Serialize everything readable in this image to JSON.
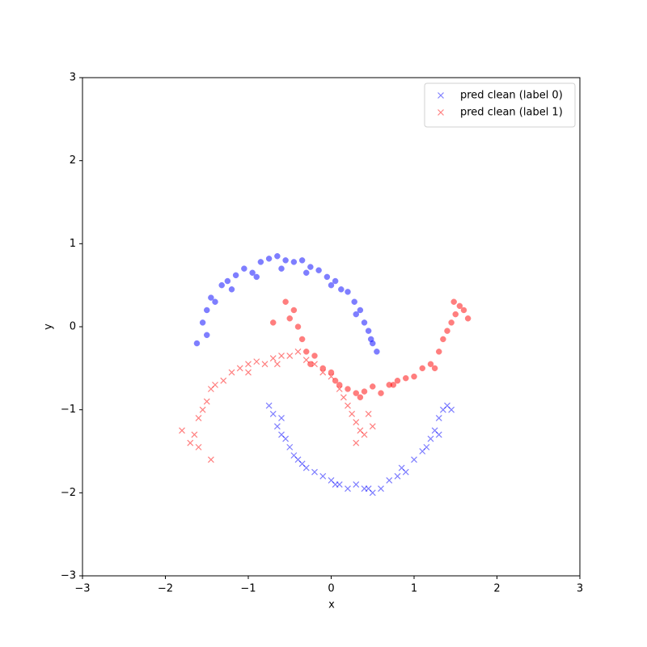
{
  "chart_data": {
    "type": "scatter",
    "xlabel": "x",
    "ylabel": "y",
    "xlim": [
      -3,
      3
    ],
    "ylim": [
      -3,
      3
    ],
    "xticks": [
      {
        "value": -3,
        "label": "−3"
      },
      {
        "value": -2,
        "label": "−2"
      },
      {
        "value": -1,
        "label": "−1"
      },
      0,
      1,
      2,
      3
    ],
    "yticks": [
      {
        "value": -3,
        "label": "−3"
      },
      {
        "value": -2,
        "label": "−2"
      },
      {
        "value": -1,
        "label": "−1"
      },
      0,
      1,
      2,
      3
    ],
    "grid": false,
    "legend": "upper right",
    "alpha": 0.5,
    "series": [
      {
        "name": "pred clean (label 0)",
        "color": "#0000ff",
        "marker": "x",
        "x": [
          -0.75,
          -0.7,
          -0.65,
          -0.6,
          -0.55,
          -0.5,
          -0.45,
          -0.4,
          -0.3,
          -0.2,
          -0.1,
          0,
          0.1,
          0.2,
          0.3,
          0.4,
          0.5,
          0.6,
          0.7,
          0.8,
          0.9,
          1.0,
          1.1,
          1.15,
          1.2,
          1.25,
          1.3,
          1.35,
          1.4,
          1.45,
          -0.6,
          -0.35,
          0.05,
          0.45,
          0.85,
          1.3
        ],
        "values": [
          -0.95,
          -1.05,
          -1.2,
          -1.3,
          -1.35,
          -1.45,
          -1.55,
          -1.6,
          -1.7,
          -1.75,
          -1.8,
          -1.85,
          -1.9,
          -1.95,
          -1.9,
          -1.95,
          -2.0,
          -1.95,
          -1.85,
          -1.8,
          -1.75,
          -1.6,
          -1.5,
          -1.45,
          -1.35,
          -1.25,
          -1.1,
          -1.0,
          -0.95,
          -1.0,
          -1.1,
          -1.65,
          -1.9,
          -1.95,
          -1.7,
          -1.3
        ]
      },
      {
        "name": "pred clean (label 1)",
        "color": "#ff0000",
        "marker": "x",
        "x": [
          -1.8,
          -1.7,
          -1.65,
          -1.6,
          -1.55,
          -1.5,
          -1.45,
          -1.4,
          -1.3,
          -1.2,
          -1.1,
          -1.0,
          -0.9,
          -0.8,
          -0.7,
          -0.6,
          -0.5,
          -0.4,
          -0.3,
          -0.2,
          -0.1,
          0.0,
          0.1,
          0.15,
          0.2,
          0.25,
          0.3,
          0.35,
          0.4,
          -1.45,
          -1.6,
          -1.0,
          -0.65,
          0.5,
          0.3,
          0.45
        ],
        "values": [
          -1.25,
          -1.4,
          -1.3,
          -1.1,
          -1.0,
          -0.9,
          -0.75,
          -0.7,
          -0.65,
          -0.55,
          -0.5,
          -0.45,
          -0.42,
          -0.45,
          -0.38,
          -0.35,
          -0.35,
          -0.3,
          -0.4,
          -0.45,
          -0.55,
          -0.6,
          -0.75,
          -0.85,
          -0.95,
          -1.05,
          -1.15,
          -1.25,
          -1.3,
          -1.6,
          -1.45,
          -0.55,
          -0.45,
          -1.2,
          -1.4,
          -1.05
        ]
      },
      {
        "color": "#0000ff",
        "marker": "o",
        "x": [
          -1.62,
          -1.55,
          -1.5,
          -1.45,
          -1.4,
          -1.32,
          -1.25,
          -1.15,
          -1.05,
          -0.95,
          -0.85,
          -0.75,
          -0.65,
          -0.55,
          -0.45,
          -0.35,
          -0.25,
          -0.15,
          -0.05,
          0.05,
          0.12,
          0.2,
          0.28,
          0.35,
          0.4,
          0.45,
          0.5,
          0.55,
          -1.5,
          -1.2,
          -0.9,
          -0.6,
          -0.3,
          0.0,
          0.3,
          0.48
        ],
        "values": [
          -0.2,
          0.05,
          0.2,
          0.35,
          0.3,
          0.5,
          0.55,
          0.62,
          0.7,
          0.65,
          0.78,
          0.82,
          0.85,
          0.8,
          0.78,
          0.8,
          0.72,
          0.68,
          0.6,
          0.55,
          0.45,
          0.42,
          0.3,
          0.2,
          0.05,
          -0.05,
          -0.2,
          -0.3,
          -0.1,
          0.45,
          0.6,
          0.7,
          0.65,
          0.5,
          0.15,
          -0.15
        ]
      },
      {
        "color": "#ff0000",
        "marker": "o",
        "x": [
          -0.7,
          -0.55,
          -0.45,
          -0.4,
          -0.35,
          -0.3,
          -0.2,
          -0.1,
          0,
          0.1,
          0.2,
          0.3,
          0.4,
          0.5,
          0.6,
          0.7,
          0.8,
          0.9,
          1.0,
          1.1,
          1.2,
          1.3,
          1.35,
          1.4,
          1.45,
          1.5,
          1.55,
          1.6,
          1.65,
          -0.5,
          -0.25,
          0.05,
          0.35,
          0.75,
          1.25,
          1.48
        ],
        "values": [
          0.05,
          0.3,
          0.2,
          0.0,
          -0.15,
          -0.3,
          -0.35,
          -0.5,
          -0.55,
          -0.7,
          -0.75,
          -0.8,
          -0.78,
          -0.72,
          -0.8,
          -0.7,
          -0.65,
          -0.62,
          -0.6,
          -0.5,
          -0.45,
          -0.3,
          -0.15,
          -0.05,
          0.05,
          0.15,
          0.25,
          0.2,
          0.1,
          0.1,
          -0.45,
          -0.65,
          -0.85,
          -0.7,
          -0.5,
          0.3
        ]
      }
    ]
  }
}
